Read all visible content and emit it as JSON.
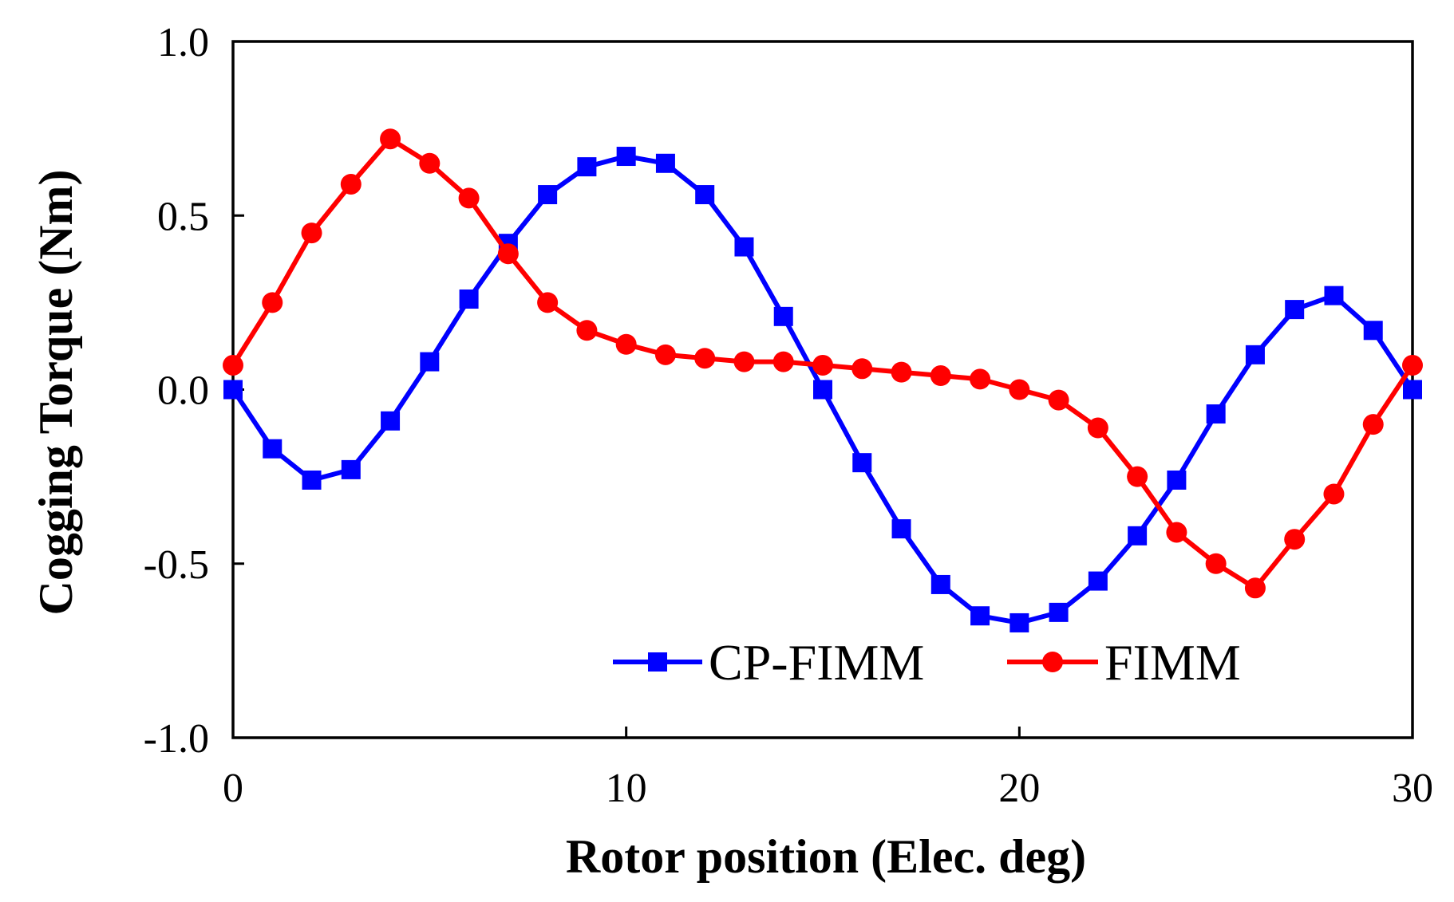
{
  "chart_data": {
    "type": "line",
    "title": "",
    "xlabel": "Rotor position (Elec. deg)",
    "ylabel": "Cogging Torque (Nm)",
    "xlim": [
      0,
      30
    ],
    "ylim": [
      -1.0,
      1.0
    ],
    "x_ticks": [
      0,
      10,
      20,
      30
    ],
    "x_tick_labels": [
      "0",
      "10",
      "20",
      "30"
    ],
    "y_ticks": [
      -1.0,
      -0.5,
      0.0,
      0.5,
      1.0
    ],
    "y_tick_labels": [
      "-1.0",
      "-0.5",
      "0.0",
      "0.5",
      "1.0"
    ],
    "grid": false,
    "legend_position": "bottom-right",
    "x": [
      0,
      1,
      2,
      3,
      4,
      5,
      6,
      7,
      8,
      9,
      10,
      11,
      12,
      13,
      14,
      15,
      16,
      17,
      18,
      19,
      20,
      21,
      22,
      23,
      24,
      25,
      26,
      27,
      28,
      29,
      30
    ],
    "series": [
      {
        "name": "CP-FIMM",
        "color": "#0000ff",
        "marker": "square",
        "values": [
          0.0,
          -0.17,
          -0.26,
          -0.23,
          -0.09,
          0.08,
          0.26,
          0.42,
          0.56,
          0.64,
          0.67,
          0.65,
          0.56,
          0.41,
          0.21,
          0.0,
          -0.21,
          -0.4,
          -0.56,
          -0.65,
          -0.67,
          -0.64,
          -0.55,
          -0.42,
          -0.26,
          -0.07,
          0.1,
          0.23,
          0.27,
          0.17,
          0.0
        ]
      },
      {
        "name": "FIMM",
        "color": "#ff0000",
        "marker": "circle",
        "values": [
          0.07,
          0.25,
          0.45,
          0.59,
          0.72,
          0.65,
          0.55,
          0.39,
          0.25,
          0.17,
          0.13,
          0.1,
          0.09,
          0.08,
          0.08,
          0.07,
          0.06,
          0.05,
          0.04,
          0.03,
          0.0,
          -0.03,
          -0.11,
          -0.25,
          -0.41,
          -0.5,
          -0.57,
          -0.43,
          -0.3,
          -0.1,
          0.07
        ]
      }
    ]
  }
}
